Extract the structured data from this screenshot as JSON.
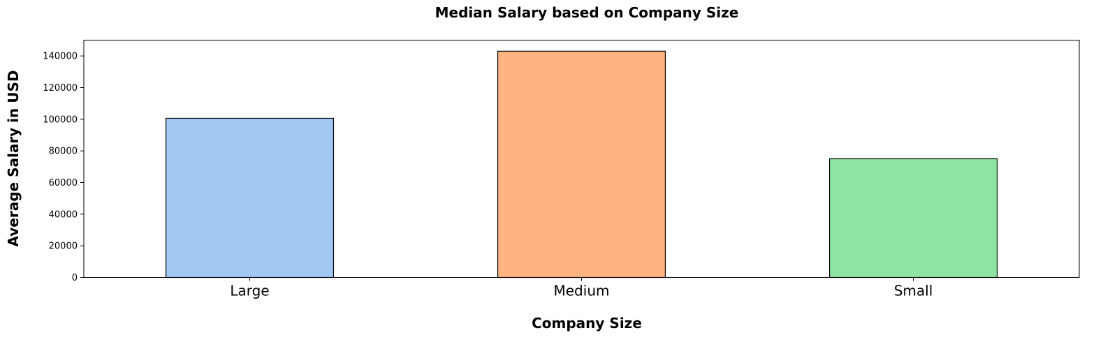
{
  "chart_data": {
    "type": "bar",
    "title": "Median Salary based on Company Size",
    "xlabel": "Company Size",
    "ylabel": "Average Salary in USD",
    "categories": [
      "Large",
      "Medium",
      "Small"
    ],
    "values": [
      100600,
      143000,
      75000
    ],
    "colors": [
      "#a1c9f4",
      "#ffb482",
      "#8de5a1"
    ],
    "edge_color": "#000000",
    "ylim": [
      0,
      150000
    ],
    "yticks": [
      0,
      20000,
      40000,
      60000,
      80000,
      100000,
      120000,
      140000
    ],
    "grid": false,
    "legend": "none"
  }
}
